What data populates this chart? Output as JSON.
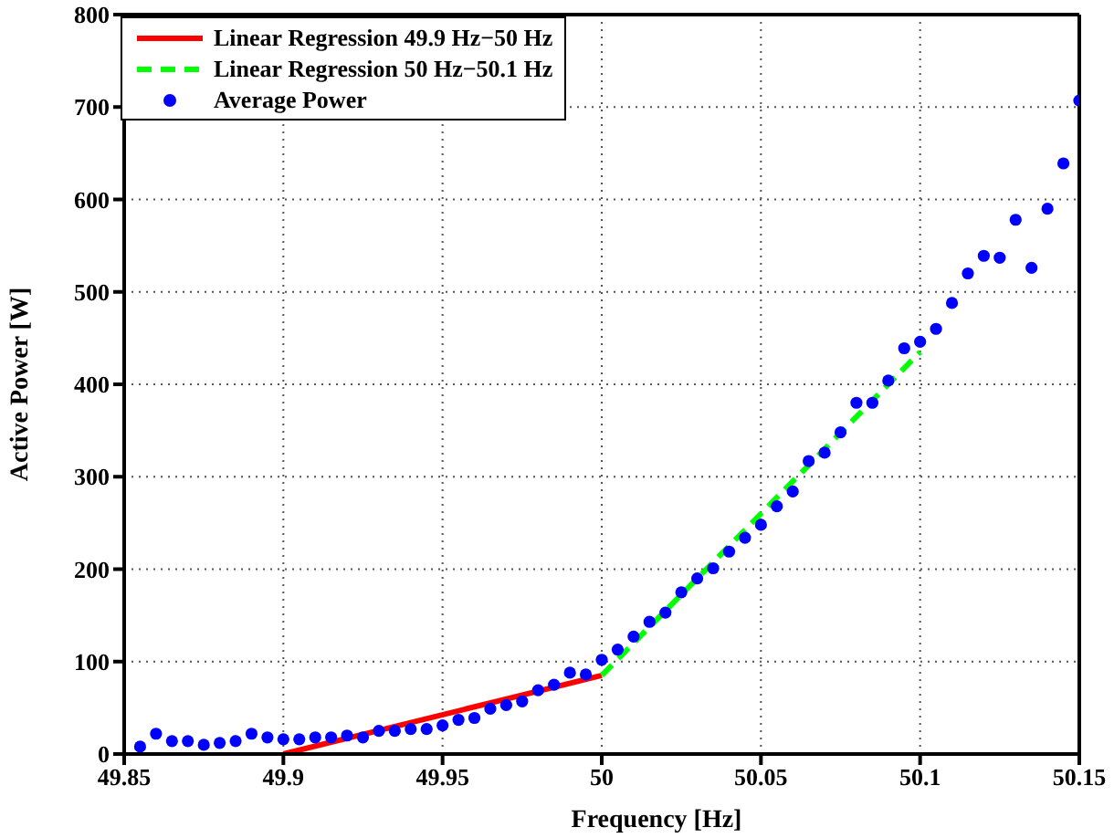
{
  "chart_data": {
    "type": "scatter",
    "xlabel": "Frequency [Hz]",
    "ylabel": "Active Power [W]",
    "xlim": [
      49.85,
      50.15
    ],
    "xticks": [
      49.85,
      49.9,
      49.95,
      50,
      50.05,
      50.1,
      50.15
    ],
    "ylim": [
      0,
      800
    ],
    "yticks": [
      0,
      100,
      200,
      300,
      400,
      500,
      600,
      700,
      800
    ],
    "grid": true,
    "legend": "top left",
    "series": [
      {
        "name": "Linear Regression 49.9 Hz−50 Hz",
        "type": "line",
        "color": "#ff0000",
        "line_style": "solid",
        "marker": "none",
        "x": [
          49.9,
          50.0
        ],
        "values": [
          0,
          85
        ]
      },
      {
        "name": "Linear Regression 50 Hz−50.1 Hz",
        "type": "line",
        "color": "#00ff00",
        "line_style": "dashed",
        "marker": "none",
        "x": [
          50.0,
          50.1
        ],
        "values": [
          85,
          435
        ]
      },
      {
        "name": "Average Power",
        "color": "#0000ff",
        "marker": "circle",
        "x": [
          49.855,
          49.86,
          49.865,
          49.87,
          49.875,
          49.88,
          49.885,
          49.89,
          49.895,
          49.9,
          49.905,
          49.91,
          49.915,
          49.92,
          49.925,
          49.93,
          49.935,
          49.94,
          49.945,
          49.95,
          49.955,
          49.96,
          49.965,
          49.97,
          49.975,
          49.98,
          49.985,
          49.99,
          49.995,
          50.0,
          50.005,
          50.01,
          50.015,
          50.02,
          50.025,
          50.03,
          50.035,
          50.04,
          50.045,
          50.05,
          50.055,
          50.06,
          50.065,
          50.07,
          50.075,
          50.08,
          50.085,
          50.09,
          50.095,
          50.1,
          50.105,
          50.11,
          50.115,
          50.12,
          50.125,
          50.13,
          50.135,
          50.14,
          50.145,
          50.15
        ],
        "values": [
          8,
          22,
          14,
          14,
          10,
          12,
          14,
          22,
          18,
          16,
          16,
          18,
          18,
          20,
          18,
          25,
          25,
          27,
          27,
          31,
          37,
          39,
          49,
          53,
          57,
          69,
          75,
          88,
          86,
          102,
          113,
          127,
          143,
          153,
          175,
          190,
          201,
          219,
          234,
          248,
          268,
          284,
          317,
          326,
          348,
          380,
          380,
          404,
          439,
          446,
          460,
          488,
          520,
          539,
          537,
          578,
          526,
          590,
          639,
          707
        ]
      }
    ]
  }
}
